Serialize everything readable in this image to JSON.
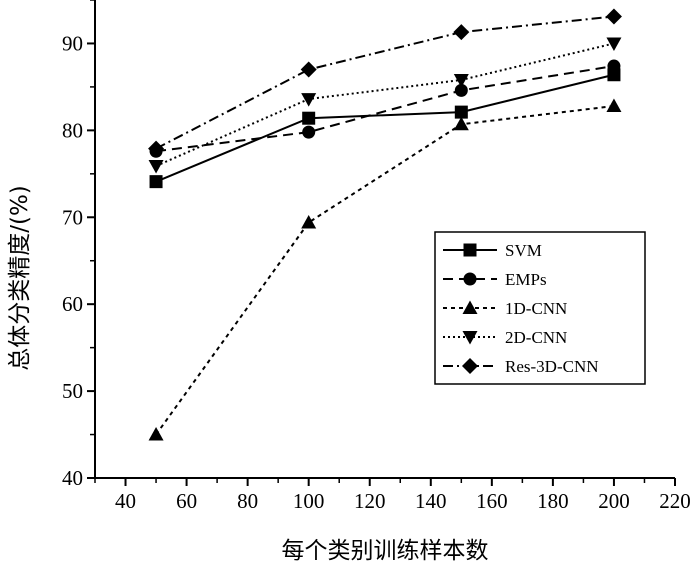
{
  "chart_data": {
    "type": "line",
    "title": "",
    "xlabel": "每个类别训练样本数",
    "ylabel": "总体分类精度/(%)",
    "xlim": [
      30,
      220
    ],
    "ylim": [
      40,
      95
    ],
    "xticks": [
      40,
      60,
      80,
      100,
      120,
      140,
      160,
      180,
      200,
      220
    ],
    "yticks": [
      40,
      50,
      60,
      70,
      80,
      90
    ],
    "x": [
      50,
      100,
      150,
      200
    ],
    "grid": false,
    "legend_position": "lower-right",
    "series": [
      {
        "name": "SVM",
        "marker": "square",
        "dash": "solid",
        "values": [
          74.1,
          81.4,
          82.1,
          86.4
        ]
      },
      {
        "name": "EMPs",
        "marker": "circle",
        "dash": "dashed",
        "values": [
          77.6,
          79.8,
          84.6,
          87.4
        ]
      },
      {
        "name": "1D-CNN",
        "marker": "triangle-up",
        "dash": "short-dashed",
        "values": [
          45.0,
          69.4,
          80.7,
          82.8
        ]
      },
      {
        "name": "2D-CNN",
        "marker": "triangle-down",
        "dash": "dotted",
        "values": [
          75.9,
          83.6,
          85.8,
          90.0
        ]
      },
      {
        "name": "Res-3D-CNN",
        "marker": "diamond",
        "dash": "dash-dot",
        "values": [
          77.9,
          87.0,
          91.3,
          93.1
        ]
      }
    ]
  }
}
